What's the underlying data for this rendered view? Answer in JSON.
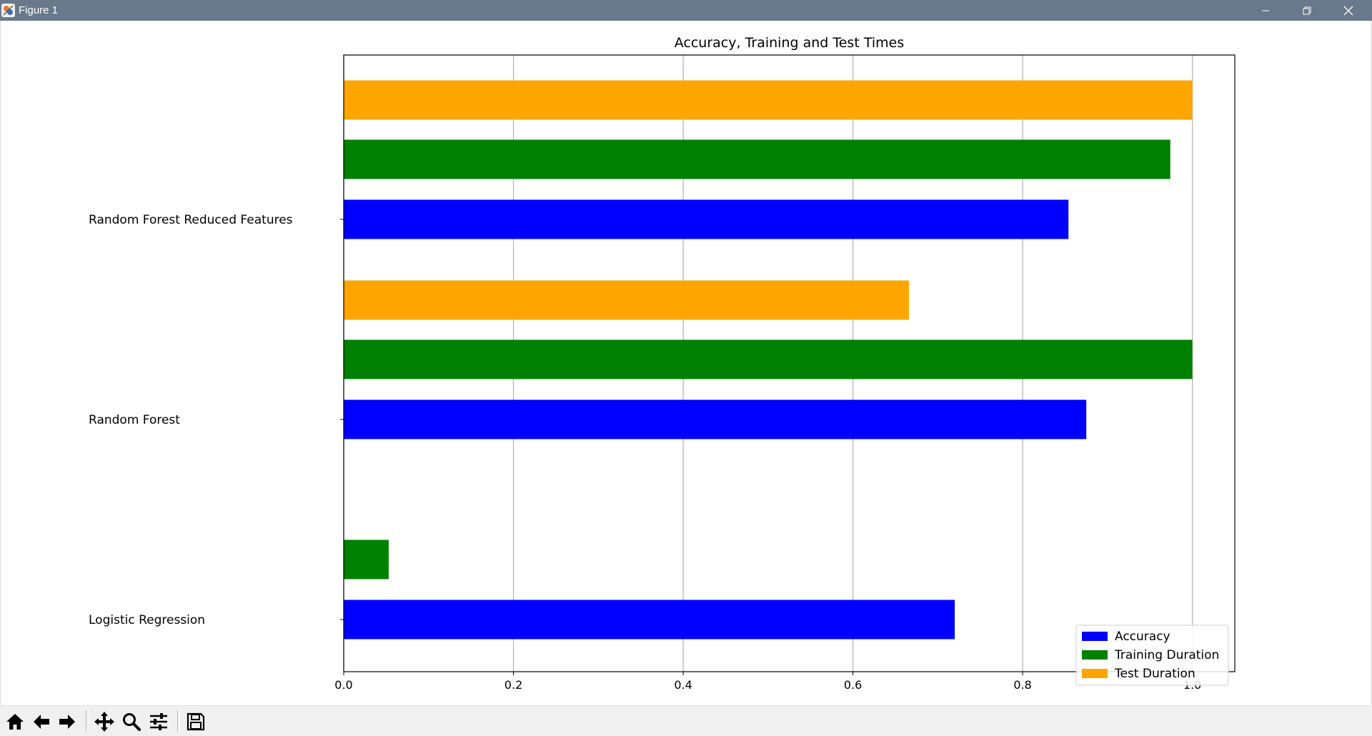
{
  "window": {
    "title": "Figure 1",
    "controls": [
      "minimize-icon",
      "restore-icon",
      "close-icon"
    ]
  },
  "toolbar": {
    "buttons": [
      "home-icon",
      "back-icon",
      "forward-icon",
      "pan-icon",
      "zoom-icon",
      "configure-subplots-icon",
      "save-icon"
    ],
    "message": ""
  },
  "colors": {
    "accuracy": "#0000ff",
    "training": "#008000",
    "test": "#ffa500",
    "grid": "#b0b0b0",
    "titlebar": "#69788a"
  },
  "chart_data": {
    "type": "bar",
    "orientation": "horizontal",
    "title": "Accuracy, Training and Test Times",
    "xlabel": "",
    "ylabel": "",
    "categories": [
      "Logistic Regression",
      "Random Forest",
      "Random Forest Reduced Features"
    ],
    "series": [
      {
        "name": "Accuracy",
        "values": [
          0.72,
          0.875,
          0.854
        ],
        "color": "#0000ff"
      },
      {
        "name": "Training Duration",
        "values": [
          0.053,
          1.0,
          0.974
        ],
        "color": "#008000"
      },
      {
        "name": "Test Duration",
        "values": [
          0.0,
          0.666,
          1.0
        ],
        "color": "#ffa500"
      }
    ],
    "xlim": [
      0.0,
      1.05
    ],
    "xticks": [
      "0.0",
      "0.2",
      "0.4",
      "0.6",
      "0.8",
      "1.0"
    ],
    "grid": "vertical",
    "legend": "lower-right"
  }
}
